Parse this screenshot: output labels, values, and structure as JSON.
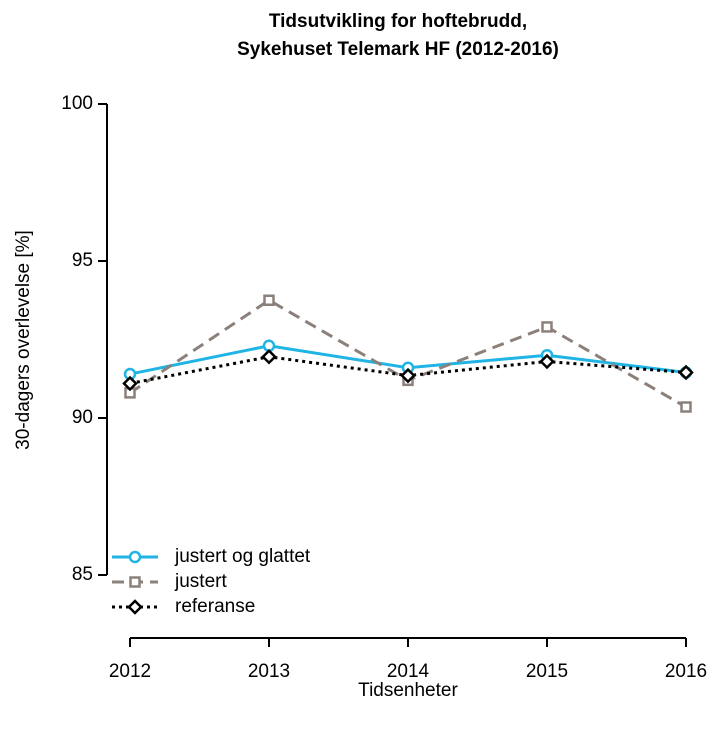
{
  "chart_data": {
    "type": "line",
    "title": [
      "Tidsutvikling for hoftebrudd,",
      "Sykehuset Telemark HF (2012-2016)"
    ],
    "x_label": "Tidsenheter",
    "y_label": "30-dagers overlevelse [%]",
    "x": [
      2012,
      2013,
      2014,
      2015,
      2016
    ],
    "xlim": [
      2012,
      2016
    ],
    "xticks": [
      2012,
      2013,
      2014,
      2015,
      2016
    ],
    "ylim": [
      85,
      100
    ],
    "yticks": [
      85,
      90,
      95,
      100
    ],
    "legend": "bottom-left",
    "series": [
      {
        "name": "justert og glattet",
        "color": "#1fb4e4",
        "linestyle": "solid",
        "marker": "circle",
        "values": [
          91.4,
          92.3,
          91.6,
          92.0,
          91.45
        ]
      },
      {
        "name": "justert",
        "color": "#8c807b",
        "linestyle": "dashed",
        "marker": "square",
        "values": [
          90.8,
          93.75,
          91.2,
          92.9,
          90.35
        ]
      },
      {
        "name": "referanse",
        "color": "#000000",
        "linestyle": "dotted",
        "marker": "diamond",
        "values": [
          91.1,
          91.95,
          91.35,
          91.8,
          91.45
        ]
      }
    ]
  }
}
